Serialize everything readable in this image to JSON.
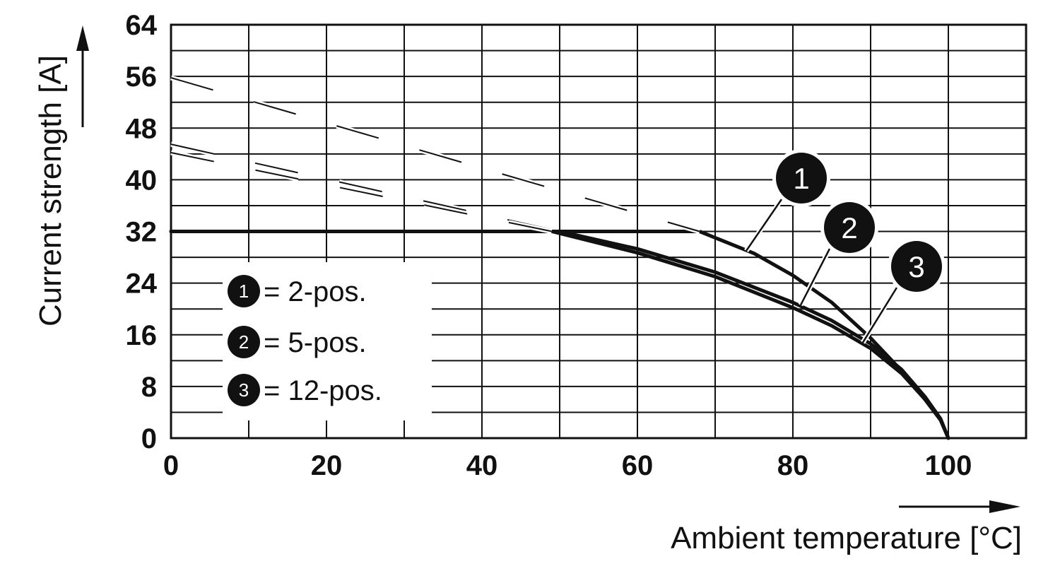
{
  "chart_data": {
    "type": "line",
    "xlabel": "Ambient temperature [°C]",
    "ylabel": "Current strength [A]",
    "xlim": [
      0,
      110
    ],
    "ylim": [
      0,
      64
    ],
    "x_ticks": [
      0,
      20,
      40,
      60,
      80,
      100
    ],
    "y_ticks": [
      0,
      8,
      16,
      24,
      32,
      40,
      48,
      56,
      64
    ],
    "x_tick_labels": [
      "0",
      "20",
      "40",
      "60",
      "80",
      "100"
    ],
    "y_tick_labels": [
      "0",
      "8",
      "16",
      "24",
      "32",
      "40",
      "48",
      "56",
      "64"
    ],
    "grid": true,
    "x_minor_step": 10,
    "y_minor_step": 4,
    "legend_position": "bottom-left",
    "series": [
      {
        "id": "1",
        "name": "= 2-pos.",
        "style": "solid",
        "x": [
          0,
          68,
          75,
          80,
          85,
          90,
          94,
          97,
          99,
          100
        ],
        "y": [
          32,
          32,
          28.6,
          25.2,
          21,
          15.5,
          10.4,
          6,
          2.8,
          0
        ]
      },
      {
        "id": "2",
        "name": "= 5-pos.",
        "style": "solid",
        "x": [
          0,
          50,
          60,
          70,
          80,
          85,
          90,
          94,
          97,
          99,
          100
        ],
        "y": [
          32,
          32,
          29.3,
          25.7,
          21,
          18.2,
          14.6,
          10.6,
          6.4,
          3,
          0
        ]
      },
      {
        "id": "3",
        "name": "= 12-pos.",
        "style": "solid",
        "x": [
          0,
          49,
          60,
          70,
          80,
          85,
          90,
          94,
          97,
          99,
          100
        ],
        "y": [
          32,
          32,
          28.7,
          25,
          20.2,
          17.4,
          13.9,
          10,
          6,
          2.8,
          0
        ]
      },
      {
        "id": "1-dashed",
        "name": "",
        "style": "dashed",
        "x": [
          0,
          68
        ],
        "y": [
          55.8,
          32
        ]
      },
      {
        "id": "2-dashed",
        "name": "",
        "style": "dashed",
        "x": [
          0,
          50
        ],
        "y": [
          45.5,
          32
        ]
      },
      {
        "id": "3-dashed",
        "name": "",
        "style": "dashed",
        "x": [
          0,
          49
        ],
        "y": [
          44.2,
          32
        ]
      }
    ],
    "callouts": [
      {
        "label": "1",
        "series": "1",
        "x": 74,
        "y": 29
      },
      {
        "label": "2",
        "series": "2",
        "x": 81,
        "y": 20.6
      },
      {
        "label": "3",
        "series": "3",
        "x": 89,
        "y": 14.8
      }
    ]
  },
  "colors": {
    "line": "#111111",
    "background": "#ffffff"
  }
}
